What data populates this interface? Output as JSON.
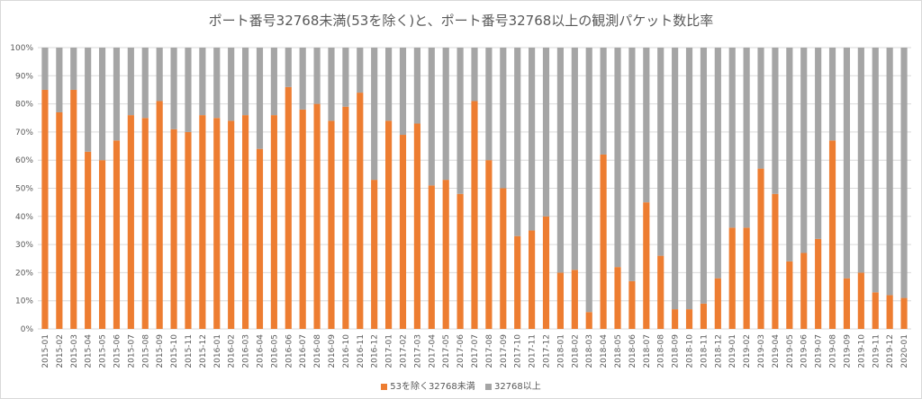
{
  "chart_data": {
    "type": "bar",
    "stacked": "percent",
    "title": "ポート番号32768未満(53を除く)と、ポート番号32768以上の観測パケット数比率",
    "xlabel": "",
    "ylabel": "",
    "ylim": [
      0,
      100
    ],
    "y_ticks": [
      "0%",
      "10%",
      "20%",
      "30%",
      "40%",
      "50%",
      "60%",
      "70%",
      "80%",
      "90%",
      "100%"
    ],
    "grid": true,
    "legend_position": "bottom",
    "categories": [
      "2015-01",
      "2015-02",
      "2015-03",
      "2015-04",
      "2015-05",
      "2015-06",
      "2015-07",
      "2015-08",
      "2015-09",
      "2015-10",
      "2015-11",
      "2015-12",
      "2016-01",
      "2016-02",
      "2016-03",
      "2016-04",
      "2016-05",
      "2016-06",
      "2016-07",
      "2016-08",
      "2016-09",
      "2016-10",
      "2016-11",
      "2016-12",
      "2017-01",
      "2017-02",
      "2017-03",
      "2017-04",
      "2017-05",
      "2017-06",
      "2017-07",
      "2017-08",
      "2017-09",
      "2017-10",
      "2017-11",
      "2017-12",
      "2018-01",
      "2018-02",
      "2018-03",
      "2018-04",
      "2018-05",
      "2018-06",
      "2018-07",
      "2018-08",
      "2018-09",
      "2018-10",
      "2018-11",
      "2018-12",
      "2019-01",
      "2019-02",
      "2019-03",
      "2019-04",
      "2019-05",
      "2019-06",
      "2019-07",
      "2019-08",
      "2019-09",
      "2019-10",
      "2019-11",
      "2019-12",
      "2020-01"
    ],
    "series": [
      {
        "name": "53を除く32768未満",
        "color": "#ed7d31",
        "values": [
          85,
          77,
          85,
          63,
          60,
          67,
          76,
          75,
          81,
          71,
          70,
          76,
          75,
          74,
          76,
          64,
          76,
          86,
          78,
          80,
          74,
          79,
          84,
          53,
          74,
          69,
          73,
          51,
          53,
          48,
          81,
          60,
          50,
          33,
          35,
          40,
          20,
          21,
          6,
          62,
          22,
          17,
          45,
          26,
          7,
          7,
          9,
          18,
          36,
          36,
          57,
          48,
          24,
          27,
          32,
          67,
          18,
          20,
          13,
          12,
          11
        ]
      },
      {
        "name": "32768以上",
        "color": "#a5a5a5",
        "values": [
          15,
          23,
          15,
          37,
          40,
          33,
          24,
          25,
          19,
          29,
          30,
          24,
          25,
          26,
          24,
          36,
          24,
          14,
          22,
          20,
          26,
          21,
          16,
          47,
          26,
          31,
          27,
          49,
          47,
          52,
          19,
          40,
          50,
          67,
          65,
          60,
          80,
          79,
          94,
          38,
          78,
          83,
          55,
          74,
          93,
          93,
          91,
          82,
          64,
          64,
          43,
          52,
          76,
          73,
          68,
          33,
          82,
          80,
          87,
          88,
          89
        ]
      }
    ]
  }
}
